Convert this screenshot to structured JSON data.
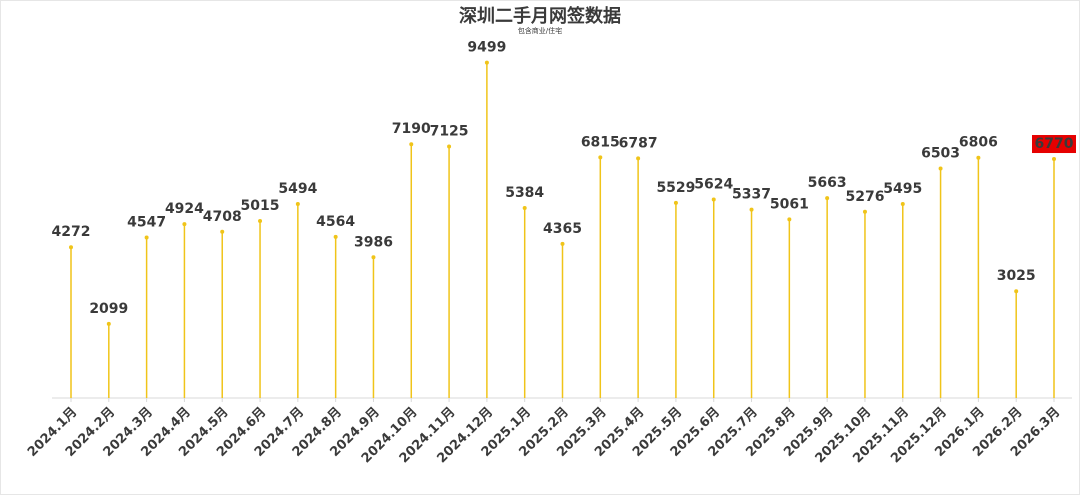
{
  "chart_data": {
    "type": "lollipop",
    "title": "深圳二手月网签数据",
    "subtitle": "包含商业/住宅",
    "categories": [
      "2024.1月",
      "2024.2月",
      "2024.3月",
      "2024.4月",
      "2024.5月",
      "2024.6月",
      "2024.7月",
      "2024.8月",
      "2024.9月",
      "2024.10月",
      "2024.11月",
      "2024.12月",
      "2025.1月",
      "2025.2月",
      "2025.3月",
      "2025.4月",
      "2025.5月",
      "2025.6月",
      "2025.7月",
      "2025.8月",
      "2025.9月",
      "2025.10月",
      "2025.11月",
      "2025.12月",
      "2026.1月",
      "2026.2月",
      "2026.3月"
    ],
    "values": [
      4272,
      2099,
      4547,
      4924,
      4708,
      5015,
      5494,
      4564,
      3986,
      7190,
      7125,
      9499,
      5384,
      4365,
      6815,
      6787,
      5529,
      5624,
      5337,
      5061,
      5663,
      5276,
      5495,
      6503,
      6806,
      3025,
      6770
    ],
    "color": "#f0c419",
    "ylim": [
      0,
      10000
    ],
    "highlight": {
      "index": 26,
      "color": "#e60000"
    }
  }
}
